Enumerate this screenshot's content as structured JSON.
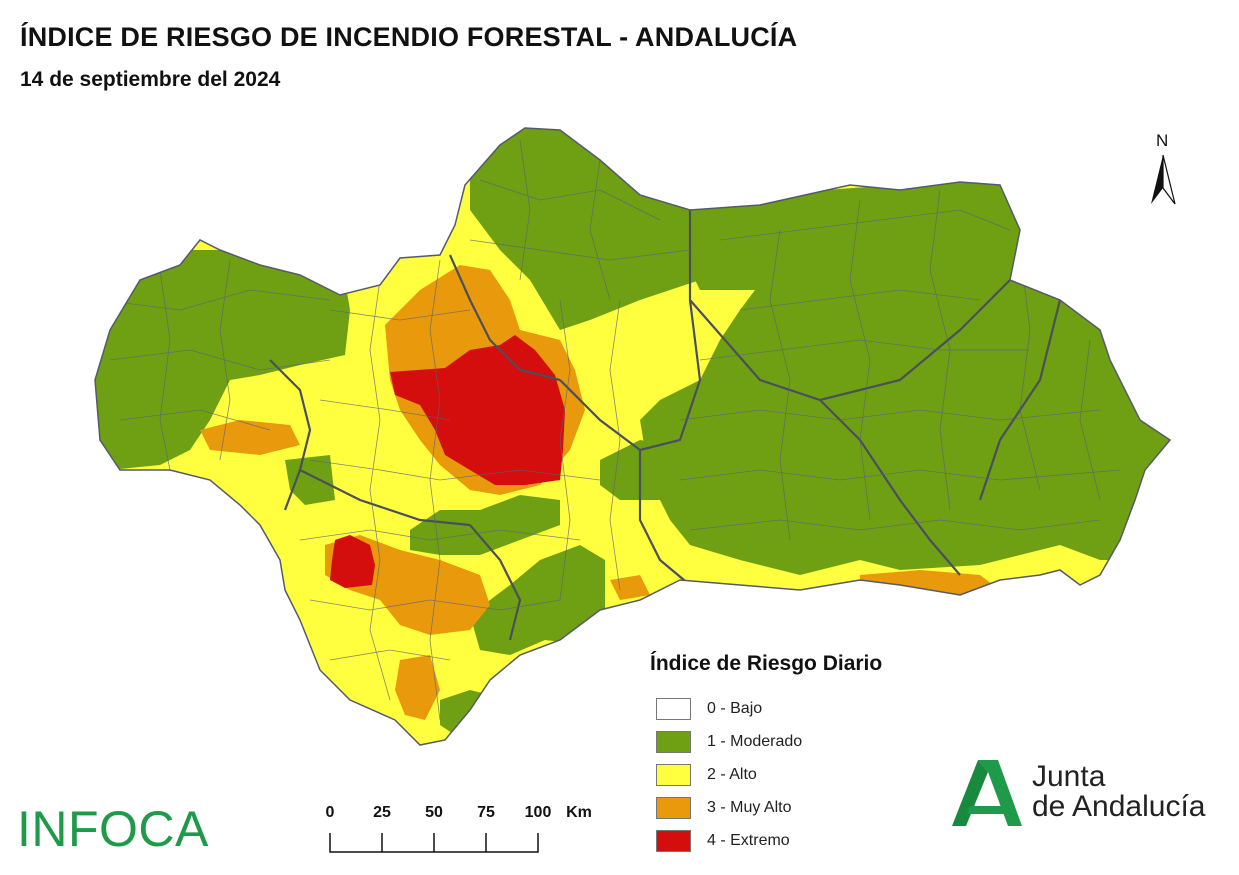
{
  "header": {
    "title": "ÍNDICE DE RIESGO DE INCENDIO FORESTAL - ANDALUCÍA",
    "date": "14 de septiembre del 2024"
  },
  "north_arrow": {
    "label": "N"
  },
  "legend": {
    "title": "Índice de Riesgo Diario",
    "items": [
      {
        "label": "0 - Bajo",
        "color": "#ffffff"
      },
      {
        "label": "1 - Moderado",
        "color": "#6fa014"
      },
      {
        "label": "2 - Alto",
        "color": "#ffff3f"
      },
      {
        "label": "3 - Muy Alto",
        "color": "#e89a0c"
      },
      {
        "label": "4 - Extremo",
        "color": "#d40d0d"
      }
    ]
  },
  "scale_bar": {
    "ticks": [
      "0",
      "25",
      "50",
      "75",
      "100"
    ],
    "unit": "Km"
  },
  "logos": {
    "infoca": "INFOCA",
    "junta_line1": "Junta",
    "junta_line2": "de Andalucía"
  },
  "map_colors": {
    "border": "#555a6a",
    "moderado": "#6fa014",
    "alto": "#ffff3f",
    "muy_alto": "#e89a0c",
    "extremo": "#d40d0d",
    "brand_green": "#1e9a4a"
  }
}
